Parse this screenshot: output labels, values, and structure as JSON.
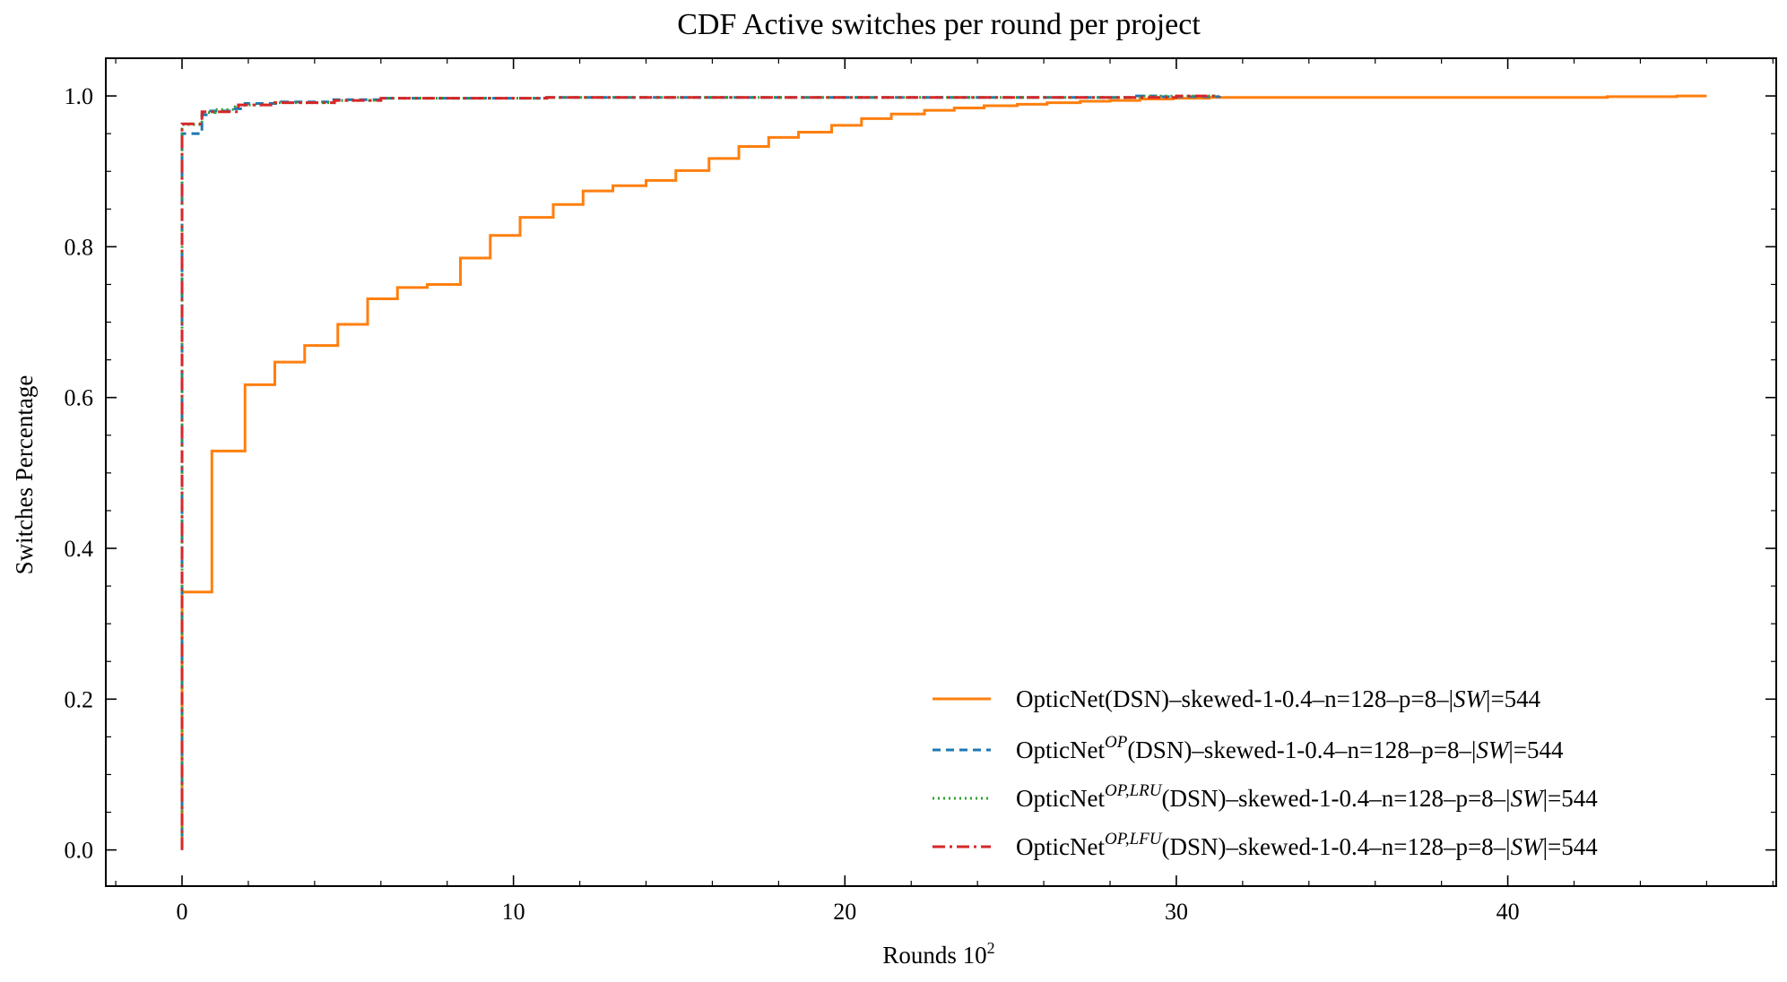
{
  "chart_data": {
    "type": "line",
    "drawstyle": "steps-post",
    "title": "CDF Active switches per round per project",
    "xlabel": "Rounds 10",
    "xlabel_sup": "2",
    "ylabel": "Switches Percentage",
    "xlim": [
      -2.3,
      48.1
    ],
    "ylim": [
      -0.048,
      1.05
    ],
    "xticks": [
      0,
      10,
      20,
      30,
      40
    ],
    "xtick_labels": [
      "0",
      "10",
      "20",
      "30",
      "40"
    ],
    "yticks": [
      0.0,
      0.2,
      0.4,
      0.6,
      0.8,
      1.0
    ],
    "ytick_labels": [
      "0.0",
      "0.2",
      "0.4",
      "0.6",
      "0.8",
      "1.0"
    ],
    "grid": false,
    "legend_position": "lower-right",
    "series": [
      {
        "name": "OpticNet(DSN)–skewed-1-0.4–n=128–p=8–|SW|=544",
        "legend_main": "OpticNet",
        "legend_sup": "",
        "legend_rest": "(DSN)–skewed-1-0.4–n=128–p=8–|",
        "legend_it": "SW",
        "legend_end": "|=544",
        "color": "#ff7f0e",
        "dash": "",
        "x": [
          0,
          0.9,
          1.9,
          2.8,
          3.7,
          4.7,
          5.6,
          6.5,
          7.4,
          8.4,
          9.3,
          10.2,
          11.2,
          12.1,
          13.0,
          14.0,
          14.9,
          15.9,
          16.8,
          17.7,
          18.6,
          19.6,
          20.5,
          21.4,
          22.4,
          23.3,
          24.2,
          25.2,
          26.1,
          27.1,
          28.0,
          28.9,
          29.9,
          31.0,
          33.0,
          36.0,
          39.0,
          43.0,
          45.1,
          46.0
        ],
        "y": [
          0.342,
          0.529,
          0.617,
          0.647,
          0.669,
          0.697,
          0.731,
          0.746,
          0.75,
          0.785,
          0.815,
          0.839,
          0.856,
          0.874,
          0.881,
          0.888,
          0.901,
          0.917,
          0.933,
          0.945,
          0.952,
          0.961,
          0.97,
          0.976,
          0.981,
          0.984,
          0.987,
          0.989,
          0.991,
          0.993,
          0.994,
          0.996,
          0.997,
          0.998,
          0.998,
          0.998,
          0.998,
          0.999,
          1.0,
          1.0
        ]
      },
      {
        "name": "OpticNet^OP(DSN)–skewed-1-0.4–n=128–p=8–|SW|=544",
        "legend_main": "OpticNet",
        "legend_sup": "OP",
        "legend_rest": "(DSN)–skewed-1-0.4–n=128–p=8–|",
        "legend_it": "SW",
        "legend_end": "|=544",
        "color": "#1f77b4",
        "dash": "9,6",
        "x": [
          0,
          0,
          0.6,
          0.8,
          1.5,
          1.9,
          3.0,
          4.5,
          6.0,
          11.0,
          28.8,
          29.5,
          31.3
        ],
        "y": [
          0.0,
          0.95,
          0.975,
          0.98,
          0.983,
          0.99,
          0.992,
          0.995,
          0.997,
          0.998,
          1.0,
          0.999,
          1.0
        ]
      },
      {
        "name": "OpticNet^OP,LRU(DSN)–skewed-1-0.4–n=128–p=8–|SW|=544",
        "legend_main": "OpticNet",
        "legend_sup": "OP,LRU",
        "legend_rest": "(DSN)–skewed-1-0.4–n=128–p=8–|",
        "legend_it": "SW",
        "legend_end": "|=544",
        "color": "#2ca02c",
        "dash": "2,4",
        "x": [
          0,
          0,
          0.6,
          1.0,
          1.6,
          2.8,
          4.6,
          6.0,
          11.0,
          29.0,
          31.3
        ],
        "y": [
          0.0,
          0.962,
          0.978,
          0.982,
          0.988,
          0.991,
          0.994,
          0.997,
          0.998,
          1.0,
          1.0
        ]
      },
      {
        "name": "OpticNet^OP,LFU(DSN)–skewed-1-0.4–n=128–p=8–|SW|=544",
        "legend_main": "OpticNet",
        "legend_sup": "OP,LFU",
        "legend_rest": "(DSN)–skewed-1-0.4–n=128–p=8–|",
        "legend_it": "SW",
        "legend_end": "|=544",
        "color": "#d62728",
        "dash": "14,5,3,5",
        "x": [
          0,
          0,
          0.6,
          1.7,
          2.8,
          4.6,
          6.0,
          11.0,
          30.0,
          31.3
        ],
        "y": [
          0.0,
          0.963,
          0.979,
          0.988,
          0.991,
          0.994,
          0.997,
          0.998,
          1.0,
          1.0
        ]
      }
    ]
  }
}
